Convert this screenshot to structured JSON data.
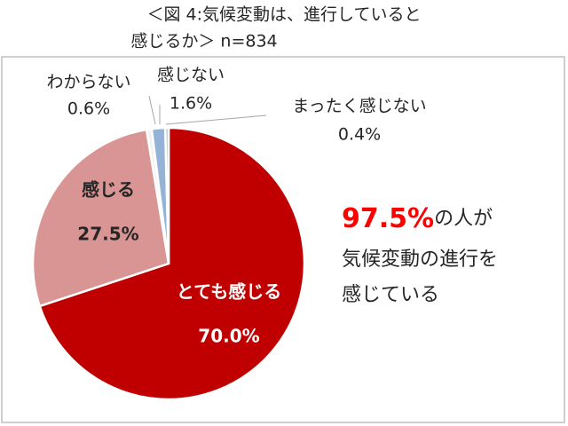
{
  "chart_data": {
    "type": "pie",
    "title": [
      "＜図 4:気候変動は、進行していると",
      "感じるか＞ n=834"
    ],
    "categories": [
      "とても感じる",
      "感じる",
      "わからない",
      "感じない",
      "まったく感じない"
    ],
    "values": [
      70.0,
      27.5,
      0.6,
      1.6,
      0.4
    ],
    "value_labels": [
      "70.0%",
      "27.5%",
      "0.6%",
      "1.6%",
      "0.4%"
    ],
    "colors": [
      "#c00000",
      "#d99594",
      "#f2f2f2",
      "#95b3d7",
      "#bfbfbf"
    ],
    "annotation": {
      "highlight": "97.5%",
      "text": [
        "の人が",
        "気候変動の進行を",
        "感じている"
      ]
    }
  }
}
